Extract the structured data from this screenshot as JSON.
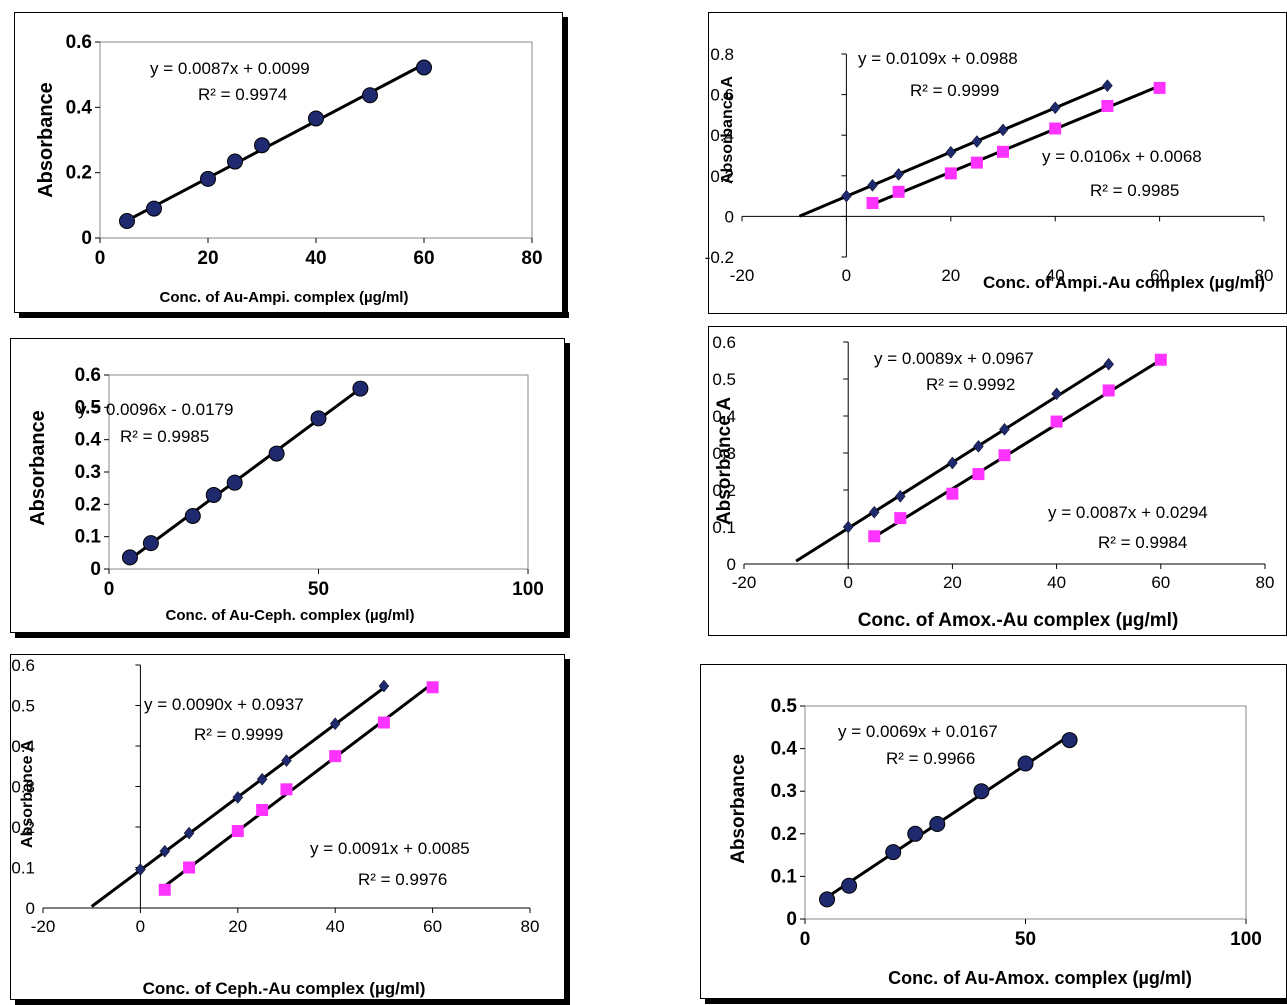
{
  "chart_data": [
    {
      "id": "chart1",
      "type": "scatter",
      "style": "bold",
      "xlabel": "Conc. of Au-Ampi. complex (µg/ml)",
      "ylabel": "Absorbance",
      "xlim": [
        0,
        80
      ],
      "ylim": [
        0,
        0.6
      ],
      "xticks": [
        "0",
        "20",
        "40",
        "60",
        "80"
      ],
      "yticks": [
        "0",
        "0.2",
        "0.4",
        "0.6"
      ],
      "series": [
        {
          "marker": "circle",
          "color": "#1f2a6e",
          "x": [
            5,
            10,
            20,
            25,
            30,
            40,
            50,
            60
          ],
          "y": [
            0.052,
            0.09,
            0.181,
            0.234,
            0.284,
            0.366,
            0.437,
            0.522
          ],
          "fit": {
            "slope": 0.0087,
            "intercept": 0.0099,
            "x": [
              5,
              60
            ]
          },
          "equation": "y = 0.0087x + 0.0099",
          "r2": "R² = 0.9974"
        }
      ]
    },
    {
      "id": "chart2",
      "type": "scatter",
      "style": "plain",
      "xlabel": "Conc. of Ampi.-Au complex (µg/ml)",
      "ylabel": "Absorbance A",
      "xlim": [
        -20,
        80
      ],
      "ylim": [
        -0.2,
        0.8
      ],
      "xticks": [
        "-20",
        "0",
        "20",
        "40",
        "60",
        "80"
      ],
      "yticks": [
        "-0.2",
        "0",
        "0.2",
        "0.4",
        "0.6",
        "0.8"
      ],
      "series": [
        {
          "marker": "diamond",
          "color": "#1f2a6e",
          "x": [
            0,
            5,
            10,
            20,
            25,
            30,
            40,
            50
          ],
          "y": [
            0.1,
            0.153,
            0.207,
            0.316,
            0.369,
            0.426,
            0.535,
            0.644
          ],
          "fit": {
            "slope": 0.0109,
            "intercept": 0.0988,
            "x": [
              -9,
              50
            ]
          },
          "equation": "y = 0.0109x + 0.0988",
          "r2": "R² = 0.9999"
        },
        {
          "marker": "square",
          "color": "#ff33ff",
          "x": [
            5,
            10,
            20,
            25,
            30,
            40,
            50,
            60
          ],
          "y": [
            0.066,
            0.121,
            0.212,
            0.265,
            0.318,
            0.433,
            0.544,
            0.633
          ],
          "fit": {
            "slope": 0.0106,
            "intercept": 0.0068,
            "x": [
              5,
              60
            ]
          },
          "equation": "y = 0.0106x + 0.0068",
          "r2": "R² = 0.9985"
        }
      ]
    },
    {
      "id": "chart3",
      "type": "scatter",
      "style": "bold",
      "xlabel": "Conc. of Au-Ceph. complex (µg/ml)",
      "ylabel": "Absorbance",
      "xlim": [
        0,
        100
      ],
      "ylim": [
        0,
        0.6
      ],
      "xticks": [
        "0",
        "50",
        "100"
      ],
      "yticks": [
        "0",
        "0.1",
        "0.2",
        "0.3",
        "0.4",
        "0.5",
        "0.6"
      ],
      "series": [
        {
          "marker": "circle",
          "color": "#1f2a6e",
          "x": [
            5,
            10,
            20,
            25,
            30,
            40,
            50,
            60
          ],
          "y": [
            0.036,
            0.08,
            0.164,
            0.229,
            0.267,
            0.357,
            0.466,
            0.558
          ],
          "fit": {
            "slope": 0.0096,
            "intercept": -0.0179,
            "x": [
              5,
              60
            ]
          },
          "equation": "y = 0.0096x - 0.0179",
          "r2": "R² = 0.9985"
        }
      ]
    },
    {
      "id": "chart4",
      "type": "scatter",
      "style": "plain",
      "xlabel": "Conc. of Amox.-Au complex (µg/ml)",
      "ylabel": "Absorbance A",
      "xlim": [
        -20,
        80
      ],
      "ylim": [
        0,
        0.6
      ],
      "xticks": [
        "-20",
        "0",
        "20",
        "40",
        "60",
        "80"
      ],
      "yticks": [
        "0",
        "0.1",
        "0.2",
        "0.3",
        "0.4",
        "0.5",
        "0.6"
      ],
      "series": [
        {
          "marker": "diamond",
          "color": "#1f2a6e",
          "x": [
            0,
            5,
            10,
            20,
            25,
            30,
            40,
            50
          ],
          "y": [
            0.1,
            0.14,
            0.183,
            0.273,
            0.318,
            0.364,
            0.46,
            0.54
          ],
          "fit": {
            "slope": 0.0089,
            "intercept": 0.0967,
            "x": [
              -10,
              50
            ]
          },
          "equation": "y = 0.0089x + 0.0967",
          "r2": "R² = 0.9992"
        },
        {
          "marker": "square",
          "color": "#ff33ff",
          "x": [
            5,
            10,
            20,
            25,
            30,
            40,
            50,
            60
          ],
          "y": [
            0.075,
            0.124,
            0.19,
            0.243,
            0.294,
            0.385,
            0.469,
            0.552
          ],
          "fit": {
            "slope": 0.0087,
            "intercept": 0.0294,
            "x": [
              5,
              60
            ]
          },
          "equation": "y = 0.0087x + 0.0294",
          "r2": "R² = 0.9984"
        }
      ]
    },
    {
      "id": "chart5",
      "type": "scatter",
      "style": "plain",
      "xlabel": "Conc. of Ceph.-Au complex (µg/ml)",
      "ylabel": "Absorbance A",
      "xlim": [
        -20,
        80
      ],
      "ylim": [
        0,
        0.6
      ],
      "xticks": [
        "-20",
        "0",
        "20",
        "40",
        "60",
        "80"
      ],
      "yticks": [
        "0",
        "0.1",
        "0.2",
        "0.3",
        "0.4",
        "0.5",
        "0.6"
      ],
      "series": [
        {
          "marker": "diamond",
          "color": "#1f2a6e",
          "x": [
            0,
            5,
            10,
            20,
            25,
            30,
            40,
            50
          ],
          "y": [
            0.095,
            0.14,
            0.185,
            0.273,
            0.318,
            0.364,
            0.455,
            0.548
          ],
          "fit": {
            "slope": 0.009,
            "intercept": 0.0937,
            "x": [
              -10,
              50
            ]
          },
          "equation": "y = 0.0090x + 0.0937",
          "r2": "R² = 0.9999"
        },
        {
          "marker": "square",
          "color": "#ff33ff",
          "x": [
            5,
            10,
            20,
            25,
            30,
            40,
            50,
            60
          ],
          "y": [
            0.045,
            0.1,
            0.19,
            0.242,
            0.293,
            0.375,
            0.458,
            0.545
          ],
          "fit": {
            "slope": 0.0091,
            "intercept": 0.0085,
            "x": [
              5,
              60
            ]
          },
          "equation": "y = 0.0091x + 0.0085",
          "r2": "R² = 0.9976"
        }
      ]
    },
    {
      "id": "chart6",
      "type": "scatter",
      "style": "bold",
      "xlabel": "Conc. of Au-Amox. complex (µg/ml)",
      "ylabel": "Absorbance",
      "xlim": [
        0,
        100
      ],
      "ylim": [
        0,
        0.5
      ],
      "xticks": [
        "0",
        "50",
        "100"
      ],
      "yticks": [
        "0",
        "0.1",
        "0.2",
        "0.3",
        "0.4",
        "0.5"
      ],
      "series": [
        {
          "marker": "circle",
          "color": "#1f2a6e",
          "x": [
            5,
            10,
            20,
            25,
            30,
            40,
            50,
            60
          ],
          "y": [
            0.046,
            0.078,
            0.157,
            0.2,
            0.223,
            0.3,
            0.365,
            0.42
          ],
          "fit": {
            "slope": 0.0069,
            "intercept": 0.0167,
            "x": [
              5,
              60
            ]
          },
          "equation": "y = 0.0069x + 0.0167",
          "r2": "R² = 0.9966"
        }
      ]
    }
  ]
}
